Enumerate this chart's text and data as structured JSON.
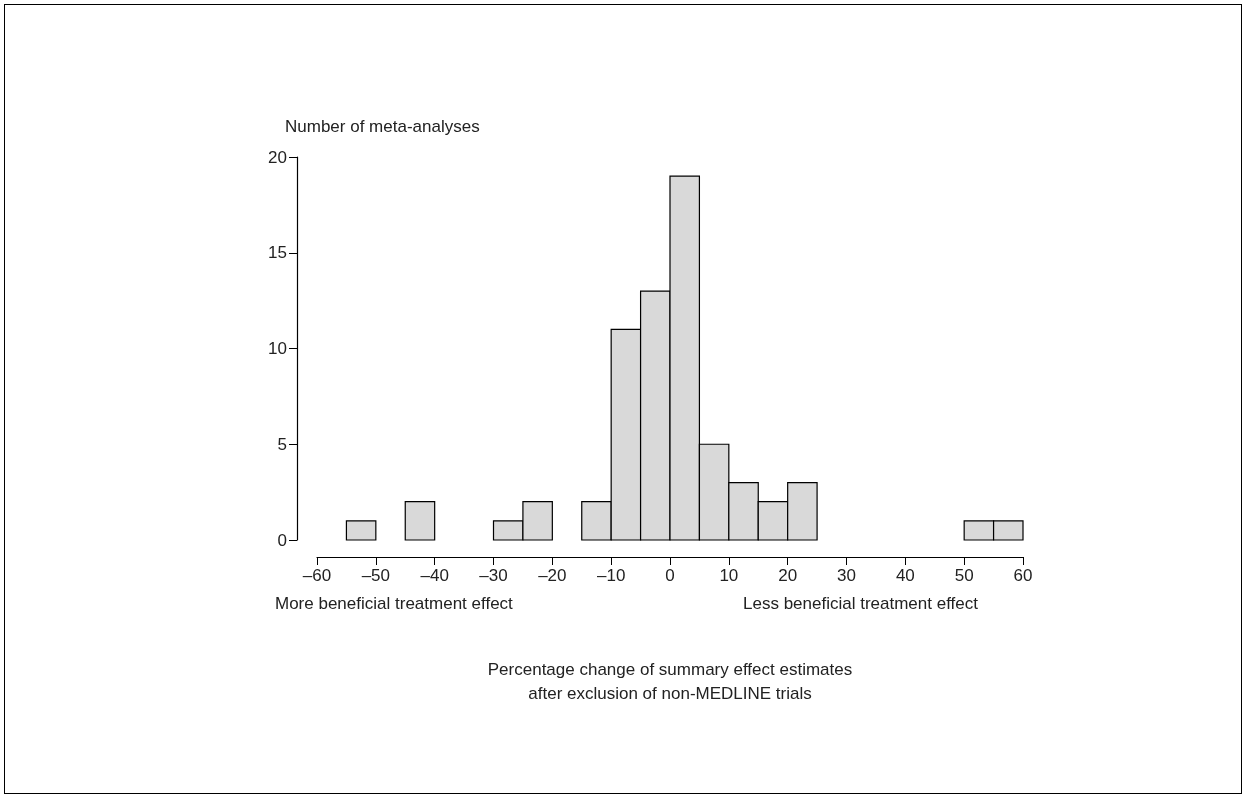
{
  "chart_data": {
    "type": "histogram",
    "ylabel": "Number of meta-analyses",
    "xlabel": "Percentage change of summary effect estimates\nafter exclusion of non-MEDLINE trials",
    "annotations": [
      "More beneficial treatment effect",
      "Less beneficial treatment effect"
    ],
    "bins": [
      -55,
      -50,
      -45,
      -40,
      -35,
      -30,
      -25,
      -20,
      -15,
      -10,
      -5,
      0,
      5,
      10,
      15,
      20,
      25,
      30,
      35,
      40,
      45,
      50,
      55,
      60
    ],
    "values": [
      1,
      0,
      2,
      0,
      0,
      1,
      2,
      0,
      2,
      11,
      13,
      19,
      5,
      3,
      2,
      3,
      0,
      0,
      0,
      0,
      0,
      1,
      1
    ],
    "color": "#d9d9d9",
    "xlim": [
      -60,
      60
    ],
    "xticks": [
      {
        "value": -60,
        "label": "–60"
      },
      {
        "value": -50,
        "label": "–50"
      },
      {
        "value": -40,
        "label": "–40"
      },
      {
        "value": -30,
        "label": "–30"
      },
      {
        "value": -20,
        "label": "–20"
      },
      {
        "value": -10,
        "label": "–10"
      },
      0,
      10,
      20,
      30,
      40,
      50,
      60
    ],
    "ylim": [
      0,
      20
    ],
    "yticks": [
      0,
      5,
      10,
      15,
      20
    ],
    "grid": false
  }
}
